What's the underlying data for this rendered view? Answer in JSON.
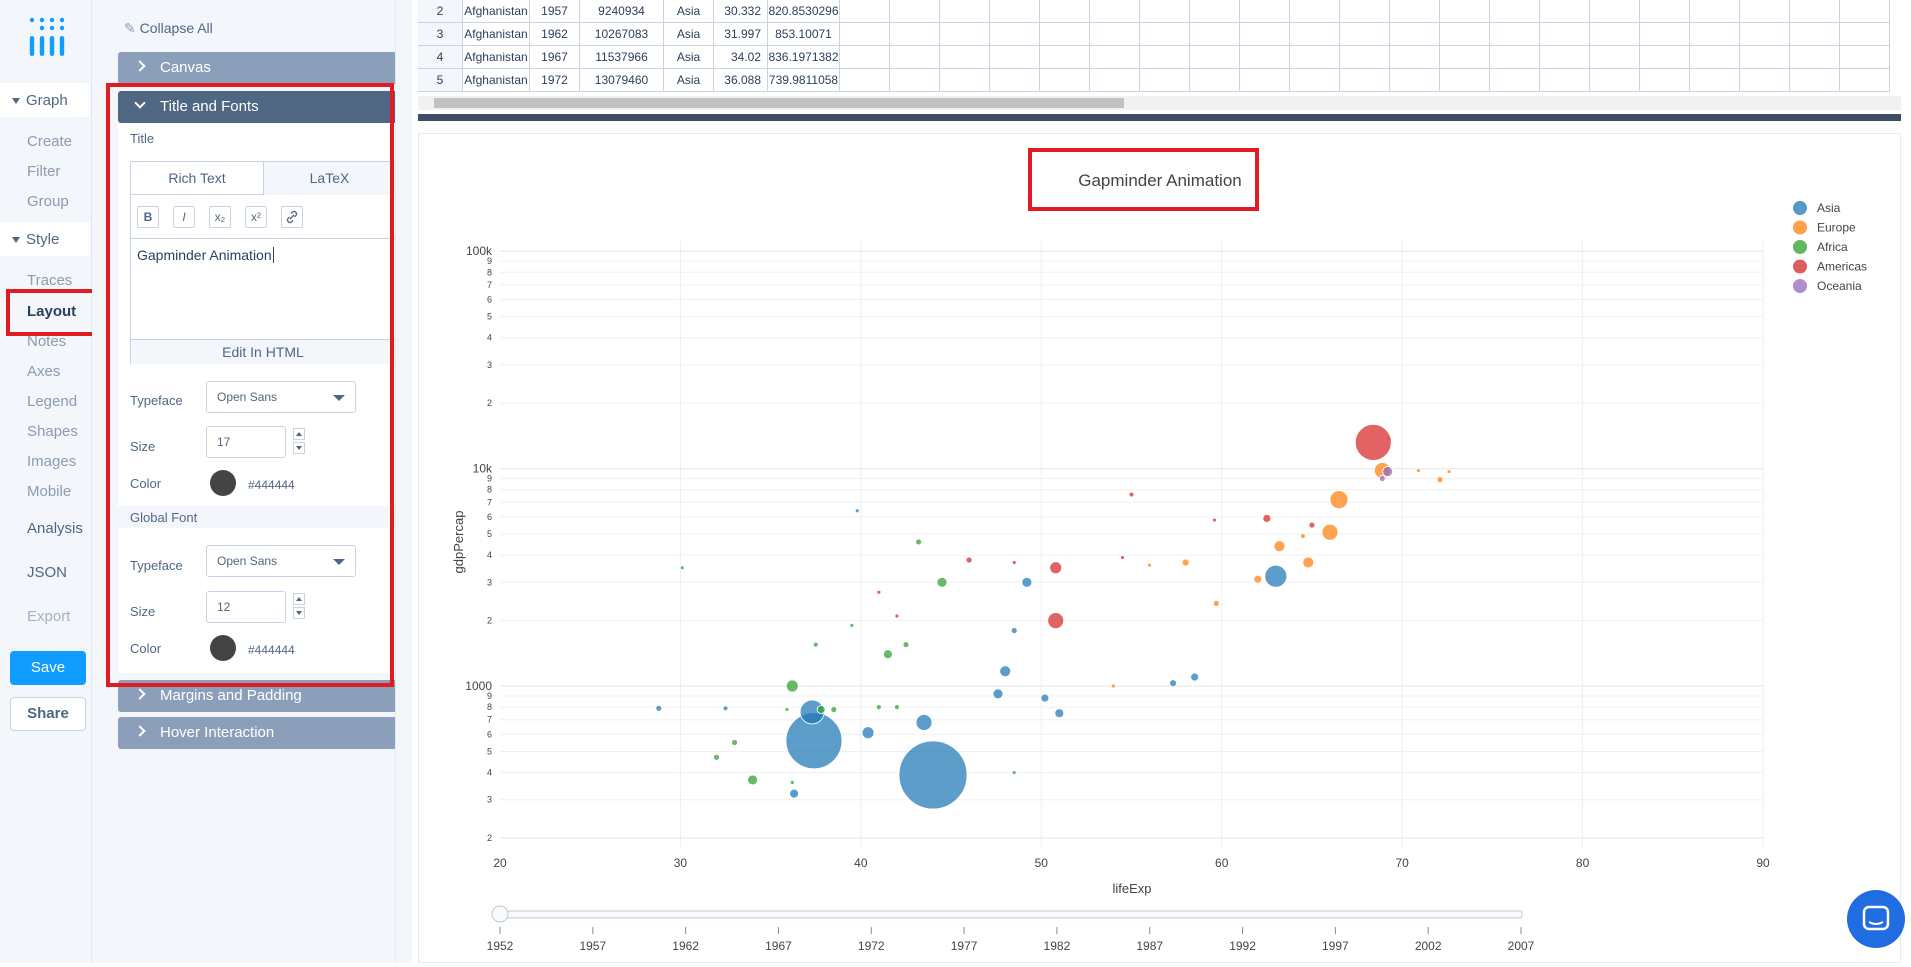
{
  "nav": {
    "graph_label": "Graph",
    "graph_items": [
      "Create",
      "Filter",
      "Group"
    ],
    "style_label": "Style",
    "style_items": [
      "Traces",
      "Layout",
      "Notes",
      "Axes",
      "Legend",
      "Shapes",
      "Images",
      "Mobile"
    ],
    "analysis": "Analysis",
    "json": "JSON",
    "export": "Export",
    "save": "Save",
    "share": "Share"
  },
  "panel": {
    "collapse_all": "Collapse All",
    "canvas": "Canvas",
    "title_fonts": "Title and Fonts",
    "title_label": "Title",
    "tabs": [
      "Rich Text",
      "LaTeX"
    ],
    "toolbar": [
      "B",
      "I",
      "x₂",
      "x²"
    ],
    "title_value": "Gapminder Animation",
    "edit_html": "Edit In HTML",
    "typeface_label": "Typeface",
    "typeface_value": "Open Sans",
    "size_label": "Size",
    "title_size": "17",
    "color_label": "Color",
    "color_value": "#444444",
    "global_font": "Global Font",
    "global_typeface": "Open Sans",
    "global_size": "12",
    "global_color": "#444444",
    "margins": "Margins and Padding",
    "hover": "Hover Interaction"
  },
  "grid": {
    "rows": [
      [
        "2",
        "Afghanistan",
        "1957",
        "9240934",
        "Asia",
        "30.332",
        "820.8530296"
      ],
      [
        "3",
        "Afghanistan",
        "1962",
        "10267083",
        "Asia",
        "31.997",
        "853.10071"
      ],
      [
        "4",
        "Afghanistan",
        "1967",
        "11537966",
        "Asia",
        "34.02",
        "836.1971382"
      ],
      [
        "5",
        "Afghanistan",
        "1972",
        "13079460",
        "Asia",
        "36.088",
        "739.9811058"
      ]
    ]
  },
  "chart_data": {
    "type": "scatter",
    "title": "Gapminder Animation",
    "xlabel": "lifeExp",
    "ylabel": "gdpPercap",
    "xlim": [
      20,
      90
    ],
    "x_ticks": [
      "20",
      "30",
      "40",
      "50",
      "60",
      "70",
      "80",
      "90"
    ],
    "y_scale": "log",
    "ylim": [
      200,
      120000
    ],
    "y_ticks": [
      "100k",
      "10k",
      "1000"
    ],
    "legend_position": "top-right",
    "series": [
      {
        "name": "Asia",
        "color": "#1f77b4",
        "points": [
          [
            44.0,
            390,
            34
          ],
          [
            37.4,
            560,
            28
          ],
          [
            37.3,
            760,
            12
          ],
          [
            43.5,
            680,
            8
          ],
          [
            40.4,
            610,
            6
          ],
          [
            47.6,
            920,
            5
          ],
          [
            48.0,
            1170,
            5.5
          ],
          [
            50.2,
            880,
            4
          ],
          [
            48.5,
            1800,
            3
          ],
          [
            49.2,
            3000,
            5
          ],
          [
            58.5,
            1100,
            4
          ],
          [
            57.3,
            1030,
            3.5
          ],
          [
            63.0,
            3200,
            11
          ],
          [
            51.0,
            750,
            4.5
          ],
          [
            39.8,
            6400,
            2
          ],
          [
            36.3,
            320,
            4.5
          ],
          [
            32.5,
            790,
            2.5
          ],
          [
            28.8,
            790,
            3
          ]
        ]
      },
      {
        "name": "Europe",
        "color": "#ff7f0e",
        "points": [
          [
            66.5,
            7200,
            9
          ],
          [
            66.0,
            5100,
            8
          ],
          [
            68.9,
            9800,
            8
          ],
          [
            63.2,
            4400,
            5.5
          ],
          [
            64.8,
            3700,
            5.5
          ],
          [
            62.0,
            3100,
            4
          ],
          [
            59.7,
            2400,
            3
          ],
          [
            58.0,
            3700,
            3.5
          ],
          [
            56.0,
            3600,
            2
          ],
          [
            69.3,
            13800,
            2
          ],
          [
            70.9,
            9800,
            2
          ],
          [
            72.1,
            8900,
            3
          ],
          [
            72.6,
            9700,
            2
          ],
          [
            64.5,
            4900,
            2.5
          ],
          [
            54.0,
            1000,
            2
          ]
        ]
      },
      {
        "name": "Africa",
        "color": "#2ca02c",
        "points": [
          [
            34.0,
            370,
            5
          ],
          [
            32.0,
            470,
            3
          ],
          [
            33.0,
            550,
            3
          ],
          [
            36.2,
            1000,
            6
          ],
          [
            37.8,
            780,
            4
          ],
          [
            38.5,
            780,
            3
          ],
          [
            41.5,
            1400,
            4.5
          ],
          [
            42.5,
            1550,
            3
          ],
          [
            44.5,
            3000,
            5
          ],
          [
            42.0,
            800,
            2.5
          ],
          [
            43.2,
            4600,
            3
          ],
          [
            48.5,
            400,
            2
          ],
          [
            36.2,
            360,
            2
          ],
          [
            30.1,
            3500,
            2
          ],
          [
            35.9,
            780,
            2
          ],
          [
            41.0,
            800,
            2.5
          ],
          [
            39.5,
            1900,
            2
          ],
          [
            37.5,
            1550,
            2.5
          ]
        ]
      },
      {
        "name": "Americas",
        "color": "#d62728",
        "points": [
          [
            68.4,
            13200,
            18
          ],
          [
            50.8,
            2000,
            8
          ],
          [
            50.8,
            3500,
            6
          ],
          [
            62.5,
            5900,
            4
          ],
          [
            65.0,
            5500,
            3
          ],
          [
            55.0,
            7600,
            2.5
          ],
          [
            59.6,
            5800,
            2
          ],
          [
            46.0,
            3800,
            3
          ],
          [
            41.0,
            2700,
            2
          ],
          [
            42.0,
            2100,
            2
          ],
          [
            48.5,
            3700,
            2
          ],
          [
            54.5,
            3900,
            2
          ]
        ]
      },
      {
        "name": "Oceania",
        "color": "#9467bd",
        "points": [
          [
            69.2,
            9700,
            5
          ],
          [
            68.9,
            9000,
            3
          ]
        ]
      }
    ],
    "slider_labels": [
      "1952",
      "1957",
      "1962",
      "1967",
      "1972",
      "1977",
      "1982",
      "1987",
      "1992",
      "1997",
      "2002",
      "2007"
    ]
  }
}
